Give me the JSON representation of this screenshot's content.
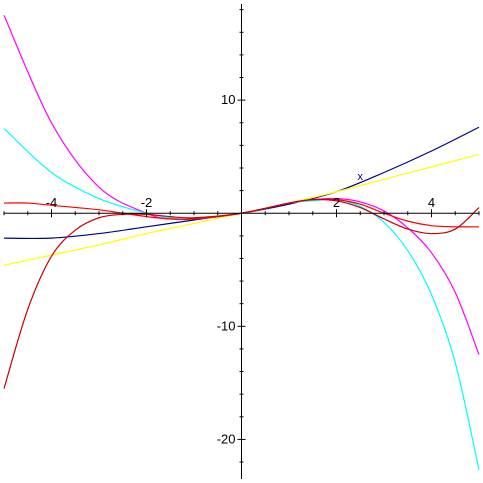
{
  "chart_data": {
    "type": "line",
    "title": "",
    "xlabel": "",
    "ylabel": "",
    "xlim": [
      -5,
      5
    ],
    "ylim": [
      -23.5,
      18.5
    ],
    "grid": false,
    "legend": "none",
    "x_ticks": [
      {
        "value": -4,
        "label": "-4"
      },
      {
        "value": -2,
        "label": "-2"
      },
      {
        "value": 2,
        "label": "2"
      },
      {
        "value": 4,
        "label": "4"
      }
    ],
    "y_ticks": [
      {
        "value": 10,
        "label": "10"
      },
      {
        "value": -10,
        "label": "-10"
      },
      {
        "value": -20,
        "label": "-20"
      }
    ],
    "annotation": {
      "text": "x",
      "x": 2.5,
      "y": 3.2,
      "color": "#00008b"
    },
    "series": [
      {
        "color": "#00008b",
        "points": [
          [
            -5,
            -2.2
          ],
          [
            -4,
            -2.2
          ],
          [
            -3,
            -1.8
          ],
          [
            -2,
            -1.2
          ],
          [
            -1,
            -0.6
          ],
          [
            0,
            0
          ],
          [
            1,
            0.8
          ],
          [
            2,
            1.9
          ],
          [
            3,
            3.6
          ],
          [
            4,
            5.5
          ],
          [
            5,
            7.6
          ]
        ]
      },
      {
        "color": "#ffff00",
        "points": [
          [
            -5,
            -4.6
          ],
          [
            -4,
            -3.7
          ],
          [
            -3,
            -2.8
          ],
          [
            -2,
            -1.8
          ],
          [
            -1,
            -0.9
          ],
          [
            0,
            0
          ],
          [
            1,
            0.9
          ],
          [
            2,
            1.9
          ],
          [
            3,
            3.0
          ],
          [
            4,
            4.1
          ],
          [
            5,
            5.2
          ]
        ]
      },
      {
        "color": "#ff00ff",
        "points": [
          [
            -5,
            17.5
          ],
          [
            -4,
            8.0
          ],
          [
            -3,
            2.3
          ],
          [
            -2,
            0.0
          ],
          [
            -1.5,
            -0.5
          ],
          [
            -1,
            -0.5
          ],
          [
            0,
            0
          ],
          [
            1,
            0.9
          ],
          [
            1.5,
            1.2
          ],
          [
            2,
            1.3
          ],
          [
            2.5,
            1.0
          ],
          [
            3,
            0.2
          ],
          [
            3.5,
            -1.3
          ],
          [
            4,
            -3.5
          ],
          [
            4.5,
            -7.0
          ],
          [
            5,
            -12.5
          ]
        ]
      },
      {
        "color": "#00ffff",
        "points": [
          [
            -5,
            7.5
          ],
          [
            -4,
            3.6
          ],
          [
            -3,
            1.3
          ],
          [
            -2,
            0.0
          ],
          [
            -1.5,
            -0.4
          ],
          [
            -1,
            -0.5
          ],
          [
            0,
            0
          ],
          [
            1,
            0.9
          ],
          [
            1.5,
            1.1
          ],
          [
            2,
            1.2
          ],
          [
            2.5,
            0.6
          ],
          [
            3,
            -0.8
          ],
          [
            3.5,
            -3.3
          ],
          [
            4,
            -7.2
          ],
          [
            4.5,
            -13.2
          ],
          [
            5,
            -22.7
          ]
        ]
      },
      {
        "color": "#ff0000",
        "points": [
          [
            -5,
            0.9
          ],
          [
            -4.5,
            0.9
          ],
          [
            -4,
            0.7
          ],
          [
            -3,
            0.3
          ],
          [
            -2,
            -0.3
          ],
          [
            -1.5,
            -0.5
          ],
          [
            -1,
            -0.5
          ],
          [
            0,
            0
          ],
          [
            1,
            0.9
          ],
          [
            1.5,
            1.2
          ],
          [
            2,
            1.2
          ],
          [
            2.5,
            0.8
          ],
          [
            3,
            0.0
          ],
          [
            3.5,
            -0.7
          ],
          [
            4,
            -1.1
          ],
          [
            4.5,
            -1.2
          ],
          [
            5,
            -1.2
          ]
        ]
      },
      {
        "color": "#cc0000",
        "points": [
          [
            -5,
            -15.5
          ],
          [
            -4.5,
            -8.5
          ],
          [
            -4,
            -3.8
          ],
          [
            -3.5,
            -1.5
          ],
          [
            -3,
            -0.4
          ],
          [
            -2.5,
            -0.1
          ],
          [
            -2,
            -0.1
          ],
          [
            -1.5,
            -0.3
          ],
          [
            -1,
            -0.4
          ],
          [
            0,
            0
          ],
          [
            1,
            0.9
          ],
          [
            1.5,
            1.2
          ],
          [
            2,
            1.1
          ],
          [
            2.5,
            0.5
          ],
          [
            3,
            -0.5
          ],
          [
            3.5,
            -1.4
          ],
          [
            4,
            -1.8
          ],
          [
            4.5,
            -1.4
          ],
          [
            5,
            0.5
          ]
        ]
      }
    ]
  }
}
